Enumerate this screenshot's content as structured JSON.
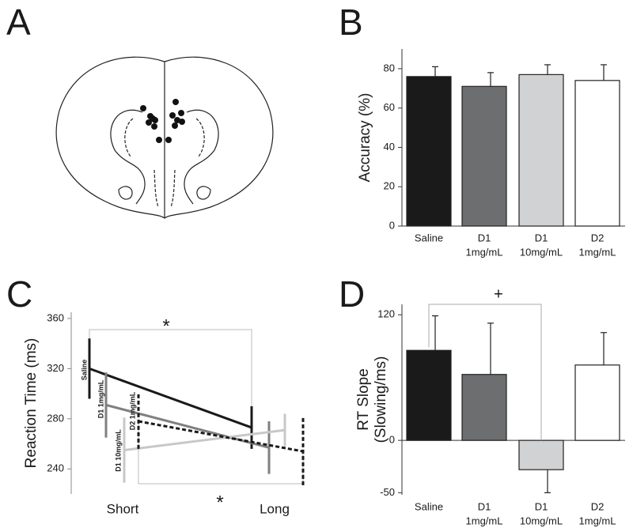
{
  "panels": [
    "A",
    "B",
    "C",
    "D"
  ],
  "chart_data": [
    {
      "type": "bar",
      "ylabel": "Accuracy (%)",
      "categories": [
        [
          "Saline"
        ],
        [
          "D1",
          "1mg/mL"
        ],
        [
          "D1",
          "10mg/mL"
        ],
        [
          "D2",
          "1mg/mL"
        ]
      ],
      "values": [
        76,
        71,
        77,
        74
      ],
      "errors": [
        5,
        7,
        5,
        8
      ],
      "colors": [
        "#1a1a1a",
        "#6d6e70",
        "#d1d2d4",
        "#ffffff"
      ],
      "ylim": [
        0,
        90
      ],
      "yticks": [
        0,
        20,
        40,
        60,
        80
      ]
    },
    {
      "type": "line",
      "ylabel": "Reaction Time (ms)",
      "categories": [
        "Short",
        "Long"
      ],
      "series": [
        {
          "name": "Saline",
          "color": "#1a1a1a",
          "dashed": false,
          "values": [
            320,
            273
          ],
          "errors": [
            24,
            17
          ]
        },
        {
          "name": "D1 1mg/mL",
          "color": "#808080",
          "dashed": false,
          "values": [
            291,
            257
          ],
          "errors": [
            26,
            21
          ]
        },
        {
          "name": "D1 10mg/mL",
          "color": "#c8c8c8",
          "dashed": false,
          "values": [
            255,
            271
          ],
          "errors": [
            26,
            13
          ]
        },
        {
          "name": "D2 1mg/mL",
          "color": "#1a1a1a",
          "dashed": true,
          "values": [
            278,
            254
          ],
          "errors": [
            22,
            27
          ]
        }
      ],
      "annotations": [
        "*",
        "*"
      ],
      "ylim": [
        220,
        365
      ],
      "yticks": [
        240,
        280,
        320,
        360
      ]
    },
    {
      "type": "bar",
      "ylabel": [
        "RT Slope",
        "(Slowing/ms)"
      ],
      "categories": [
        [
          "Saline"
        ],
        [
          "D1",
          "1mg/mL"
        ],
        [
          "D1",
          "10mg/mL"
        ],
        [
          "D2",
          "1mg/mL"
        ]
      ],
      "values": [
        86,
        63,
        -28,
        72
      ],
      "errors": [
        33,
        49,
        22,
        31
      ],
      "colors": [
        "#1a1a1a",
        "#6d6e70",
        "#d1d2d4",
        "#ffffff"
      ],
      "annotations": [
        "+"
      ],
      "ylim": [
        -52,
        130
      ],
      "yticks": [
        -50,
        0,
        120
      ]
    }
  ]
}
